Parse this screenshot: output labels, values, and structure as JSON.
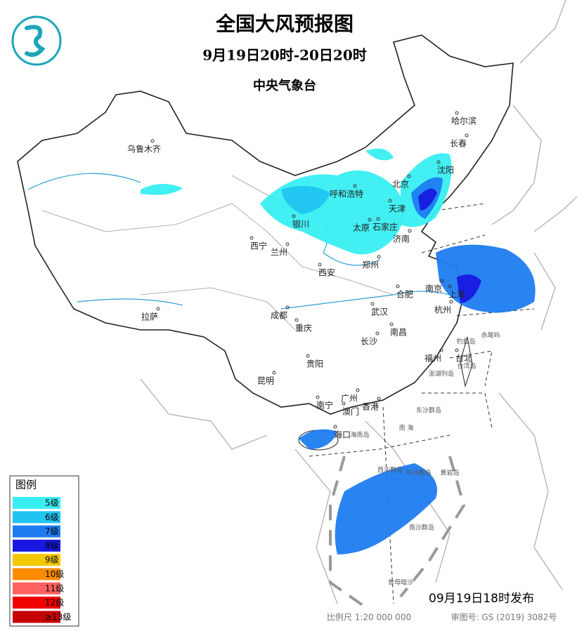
{
  "header": {
    "title": "全国大风预报图",
    "period": "9月19日20时-20日20时",
    "issuer": "中央气象台"
  },
  "legend": {
    "title": "图例",
    "items": [
      {
        "label": "5级",
        "color": "#38eef2"
      },
      {
        "label": "6级",
        "color": "#20c4f0"
      },
      {
        "label": "7级",
        "color": "#1e7cf0"
      },
      {
        "label": "8级",
        "color": "#1818e0"
      },
      {
        "label": "9级",
        "color": "#f2c800"
      },
      {
        "label": "10级",
        "color": "#ff8c00"
      },
      {
        "label": "11级",
        "color": "#ff6060"
      },
      {
        "label": "12级",
        "color": "#f00000"
      },
      {
        "label": "≥13级",
        "color": "#c40000"
      }
    ]
  },
  "cities": [
    "乌鲁木齐",
    "哈尔滨",
    "长春",
    "沈阳",
    "北京",
    "天津",
    "呼和浩特",
    "银川",
    "太原",
    "石家庄",
    "济南",
    "西宁",
    "兰州",
    "西安",
    "郑州",
    "合肥",
    "南京",
    "上海",
    "杭州",
    "武汉",
    "成都",
    "重庆",
    "长沙",
    "南昌",
    "拉萨",
    "贵阳",
    "福州",
    "台北",
    "昆明",
    "南宁",
    "广州",
    "澳门",
    "香港",
    "海口"
  ],
  "places": [
    "南 海",
    "东沙群岛",
    "西沙群岛",
    "中沙群岛",
    "黄岩岛",
    "南沙群岛",
    "曾母暗沙",
    "海南岛",
    "台湾岛",
    "钓鱼岛",
    "赤尾屿",
    "澎湖列岛"
  ],
  "footer": {
    "issued": "09月19日18时发布",
    "scale": "比例尺 1:20 000 000",
    "approval": "审图号: GS (2019) 3082号"
  }
}
